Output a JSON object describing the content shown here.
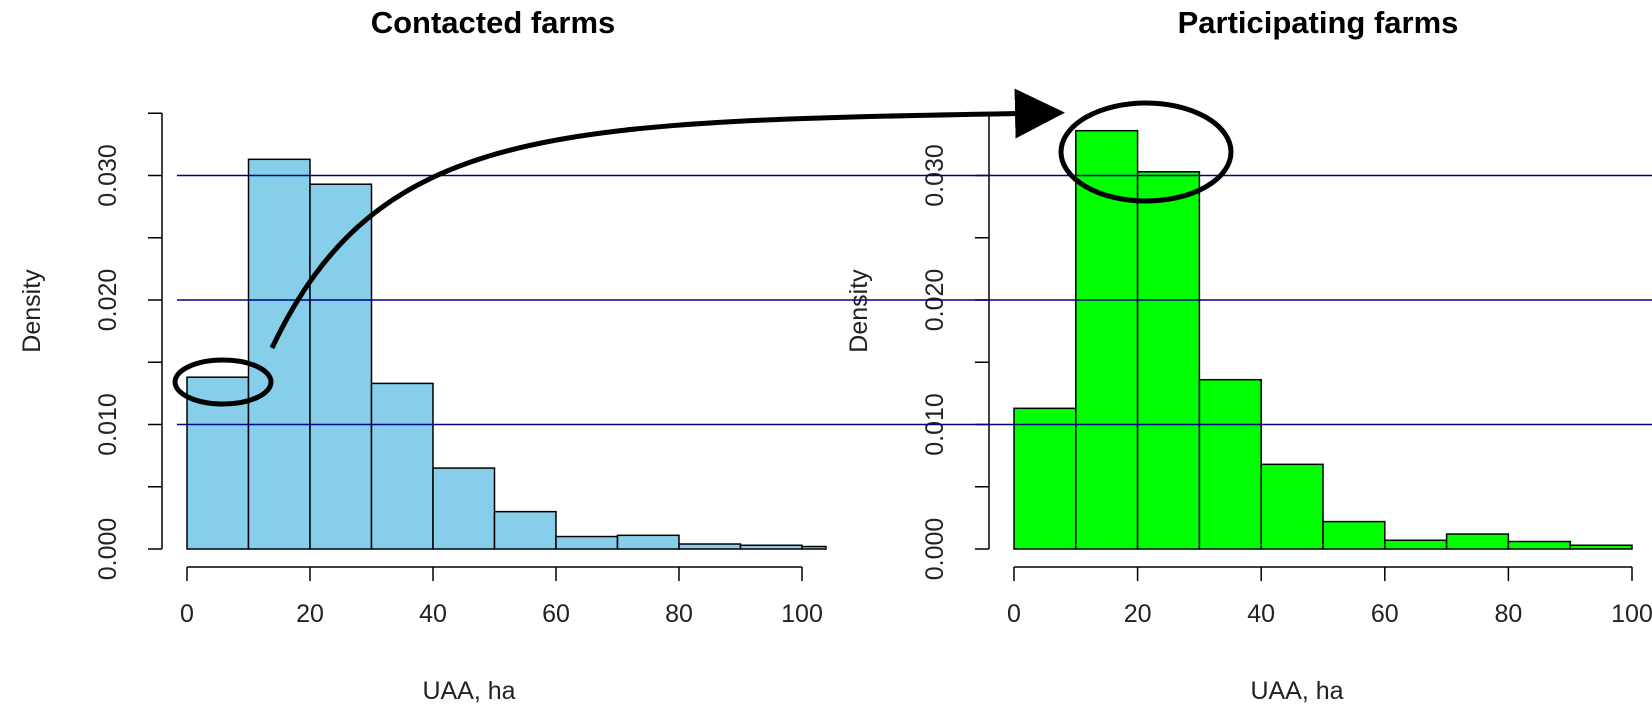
{
  "chart_data": [
    {
      "type": "bar",
      "title": "Contacted farms",
      "xlabel": "UAA, ha",
      "ylabel": "Density",
      "bar_color": "#87CEEB",
      "bin_edges": [
        0,
        10,
        20,
        30,
        40,
        50,
        60,
        70,
        80,
        90,
        100,
        110
      ],
      "values": [
        0.0138,
        0.0313,
        0.0293,
        0.0133,
        0.0065,
        0.003,
        0.001,
        0.0011,
        0.0004,
        0.0003,
        0.0002
      ],
      "xlim": [
        0,
        104
      ],
      "ylim": [
        0,
        0.035
      ],
      "xticks": [
        0,
        20,
        40,
        60,
        80,
        100
      ],
      "yticks": [
        "0.000",
        "0.010",
        "0.020",
        "0.030"
      ],
      "grid": "horizontal reference lines at 0.010, 0.020, 0.030",
      "annotation": "ellipse around first bar (0–10 ha) with curved arrow pointing to the tallest bars of Participating farms"
    },
    {
      "type": "bar",
      "title": "Participating farms",
      "xlabel": "UAA, ha",
      "ylabel": "Density",
      "bar_color": "#00FF00",
      "bin_edges": [
        0,
        10,
        20,
        30,
        40,
        50,
        60,
        70,
        80,
        90,
        100
      ],
      "values": [
        0.0113,
        0.0336,
        0.0303,
        0.0136,
        0.0068,
        0.0022,
        0.0007,
        0.0012,
        0.0006,
        0.0003
      ],
      "xlim": [
        0,
        104
      ],
      "ylim": [
        0,
        0.035
      ],
      "xticks": [
        0,
        20,
        40,
        60,
        80,
        100
      ],
      "yticks": [
        "0.000",
        "0.010",
        "0.020",
        "0.030"
      ],
      "grid": "horizontal reference lines at 0.010, 0.020, 0.030",
      "annotation": "ellipse around the two tallest bars (10–30 ha)"
    }
  ],
  "reference_line_color": "#000080"
}
